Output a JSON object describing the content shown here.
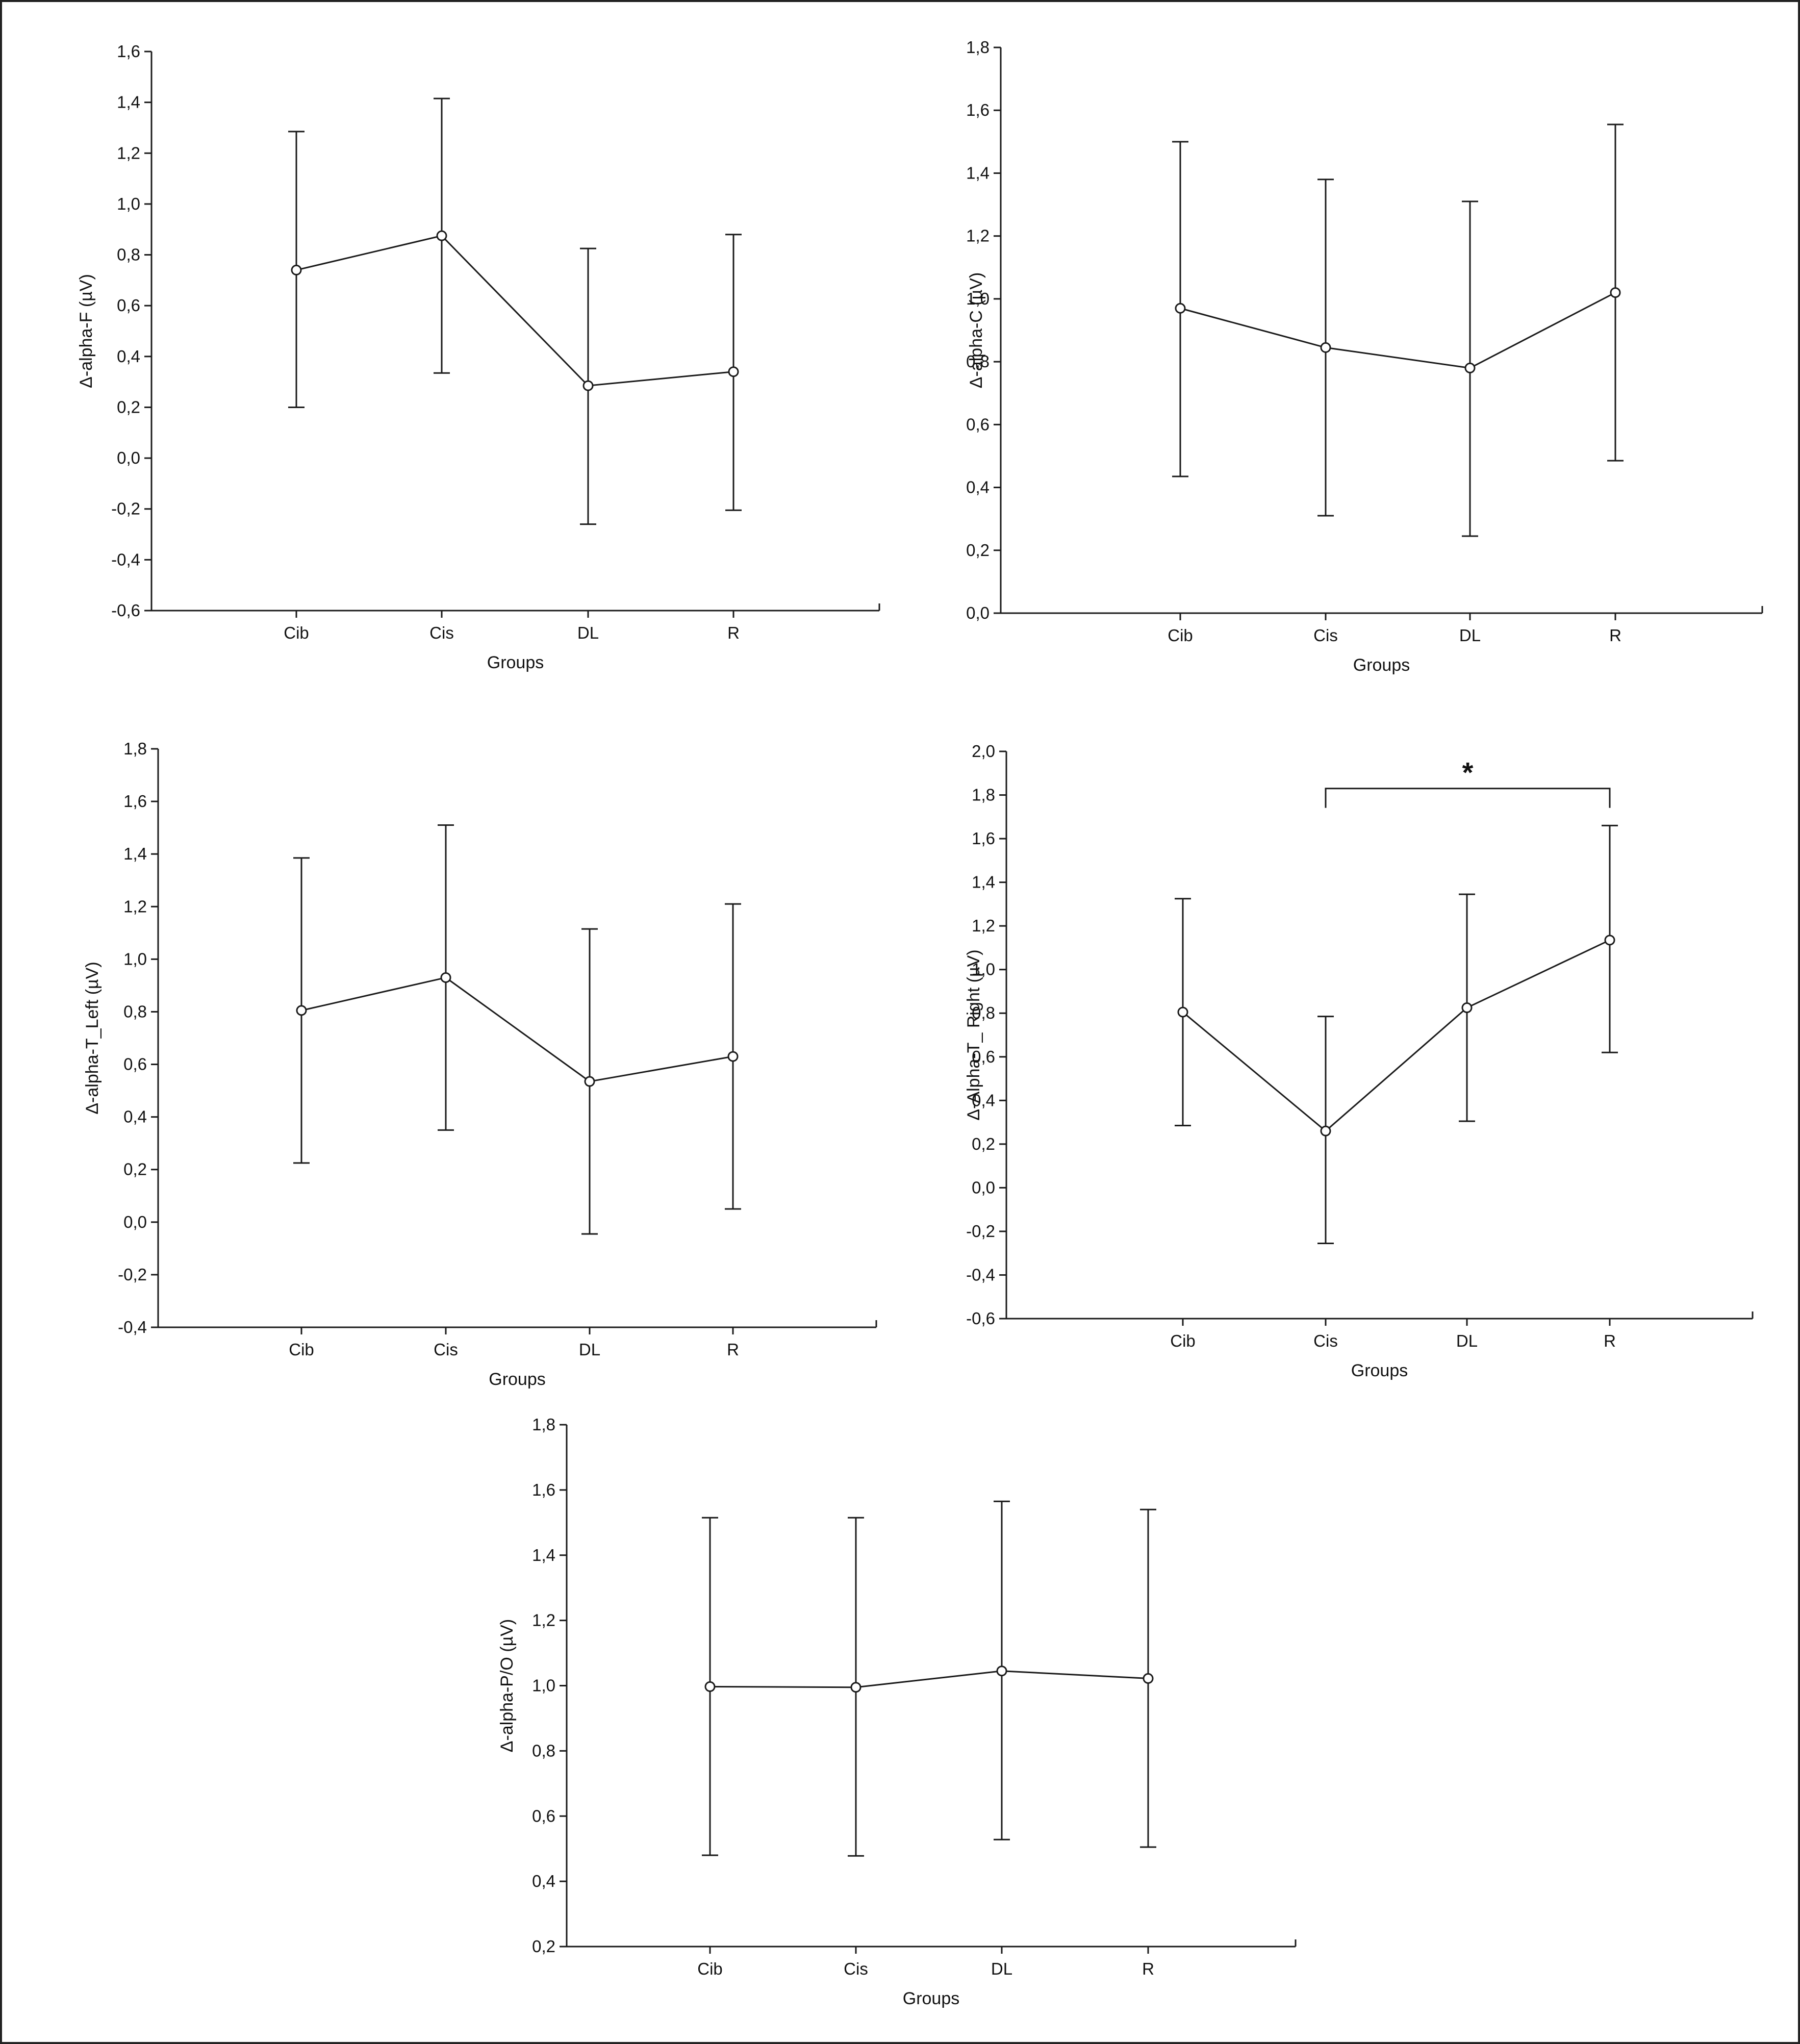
{
  "chart_data": [
    {
      "type": "line",
      "error_bars": true,
      "categories": [
        "Cib",
        "Cis",
        "DL",
        "R"
      ],
      "xlabel": "Groups",
      "ylabel": "Δ-alpha-F (µV)",
      "ylim": [
        -0.6,
        1.6
      ],
      "y_ticks": [
        "-0,6",
        "-0,4",
        "-0,2",
        "0,0",
        "0,2",
        "0,4",
        "0,6",
        "0,8",
        "1,0",
        "1,2",
        "1,4",
        "1,6"
      ],
      "means": [
        0.74,
        0.875,
        0.285,
        0.34
      ],
      "lower": [
        0.2,
        0.335,
        -0.26,
        -0.205
      ],
      "upper": [
        1.285,
        1.415,
        0.825,
        0.88
      ],
      "significance": null
    },
    {
      "type": "line",
      "error_bars": true,
      "categories": [
        "Cib",
        "Cis",
        "DL",
        "R"
      ],
      "xlabel": "Groups",
      "ylabel": "Δ-alpha-C (µV)",
      "ylim": [
        0.0,
        1.8
      ],
      "y_ticks": [
        "0,0",
        "0,2",
        "0,4",
        "0,6",
        "0,8",
        "1,0",
        "1,2",
        "1,4",
        "1,6",
        "1,8"
      ],
      "means": [
        0.97,
        0.845,
        0.78,
        1.02
      ],
      "lower": [
        0.435,
        0.31,
        0.245,
        0.485
      ],
      "upper": [
        1.5,
        1.38,
        1.31,
        1.555
      ],
      "significance": null
    },
    {
      "type": "line",
      "error_bars": true,
      "categories": [
        "Cib",
        "Cis",
        "DL",
        "R"
      ],
      "xlabel": "Groups",
      "ylabel": "Δ-alpha-T_Left (µV)",
      "ylim": [
        -0.4,
        1.8
      ],
      "y_ticks": [
        "-0,4",
        "-0,2",
        "0,0",
        "0,2",
        "0,4",
        "0,6",
        "0,8",
        "1,0",
        "1,2",
        "1,4",
        "1,6",
        "1,8"
      ],
      "means": [
        0.805,
        0.93,
        0.535,
        0.63
      ],
      "lower": [
        0.225,
        0.35,
        -0.045,
        0.05
      ],
      "upper": [
        1.385,
        1.51,
        1.115,
        1.21
      ],
      "significance": null
    },
    {
      "type": "line",
      "error_bars": true,
      "categories": [
        "Cib",
        "Cis",
        "DL",
        "R"
      ],
      "xlabel": "Groups",
      "ylabel": "Δ-Alpha-T_ Right (µV)",
      "ylim": [
        -0.6,
        2.0
      ],
      "y_ticks": [
        "-0,6",
        "-0,4",
        "-0,2",
        "0,0",
        "0,2",
        "0,4",
        "0,6",
        "0,8",
        "1,0",
        "1,2",
        "1,4",
        "1,6",
        "1,8",
        "2,0"
      ],
      "means": [
        0.805,
        0.26,
        0.825,
        1.135
      ],
      "lower": [
        0.285,
        -0.255,
        0.305,
        0.62
      ],
      "upper": [
        1.325,
        0.785,
        1.345,
        1.66
      ],
      "significance": {
        "from": "Cis",
        "to": "R",
        "y": 1.83,
        "label": "*"
      }
    },
    {
      "type": "line",
      "error_bars": true,
      "categories": [
        "Cib",
        "Cis",
        "DL",
        "R"
      ],
      "xlabel": "Groups",
      "ylabel": "Δ-alpha-P/O (µV)",
      "ylim": [
        0.2,
        1.8
      ],
      "y_ticks": [
        "0,2",
        "0,4",
        "0,6",
        "0,8",
        "1,0",
        "1,2",
        "1,4",
        "1,6",
        "1,8"
      ],
      "means": [
        0.997,
        0.995,
        1.045,
        1.022
      ],
      "lower": [
        0.48,
        0.478,
        0.528,
        0.505
      ],
      "upper": [
        1.515,
        1.515,
        1.565,
        1.54
      ],
      "significance": null
    }
  ]
}
